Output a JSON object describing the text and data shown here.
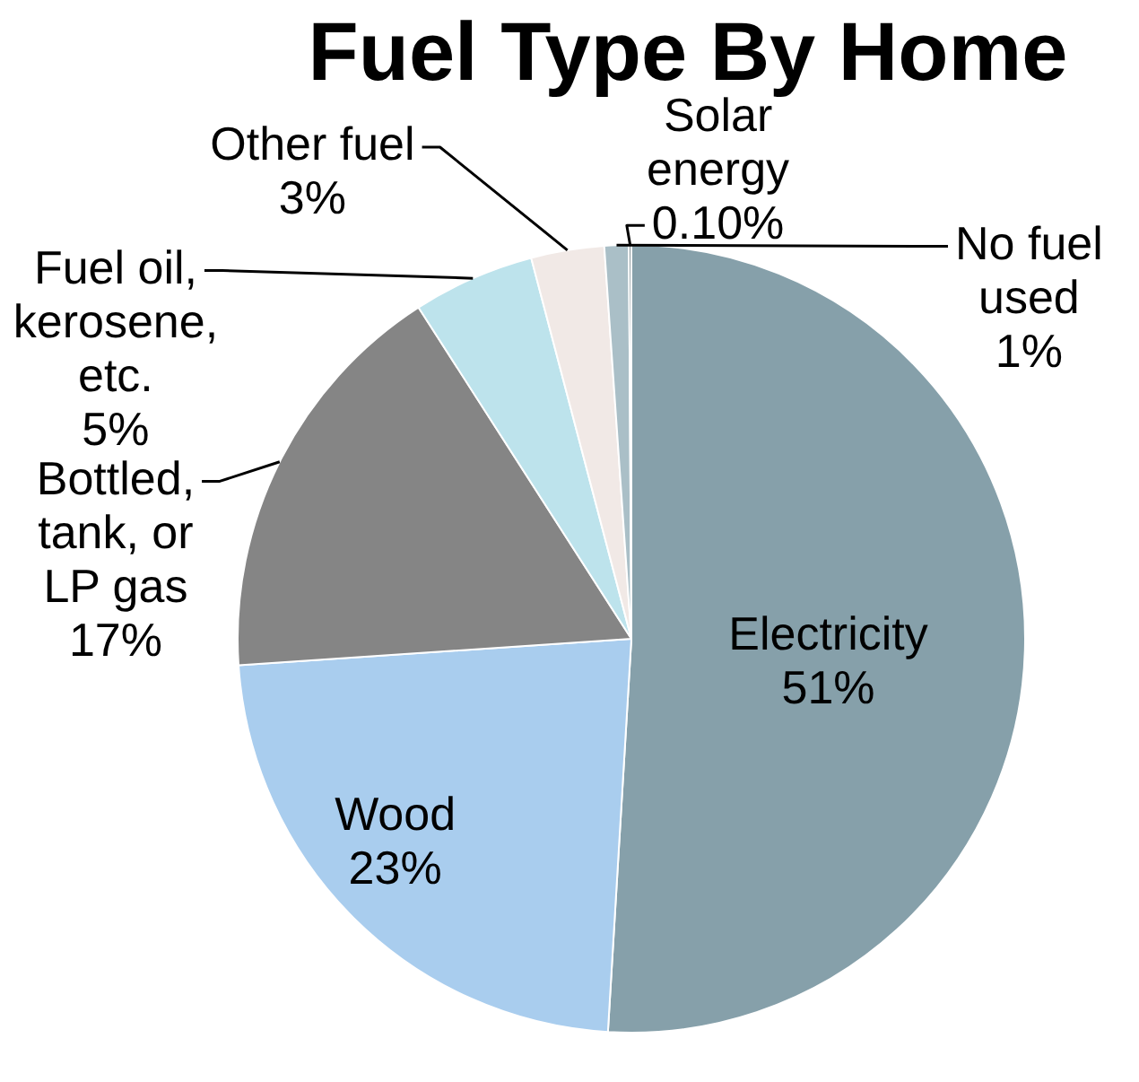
{
  "chart_data": {
    "type": "pie",
    "title": "Fuel Type By Home",
    "categories": [
      "Electricity",
      "Wood",
      "Bottled, tank, or LP gas",
      "Fuel oil, kerosene, etc.",
      "Other fuel",
      "No fuel used",
      "Solar energy"
    ],
    "values": [
      51,
      23,
      17,
      5,
      3,
      1,
      0.1
    ],
    "colors": [
      "#86a0aa",
      "#a9cdee",
      "#858585",
      "#bde3ec",
      "#f1e9e6",
      "#aabfc7",
      "#55686f"
    ],
    "value_labels": [
      "51%",
      "23%",
      "17%",
      "5%",
      "3%",
      "1%",
      "0.10%"
    ],
    "legend": false
  }
}
